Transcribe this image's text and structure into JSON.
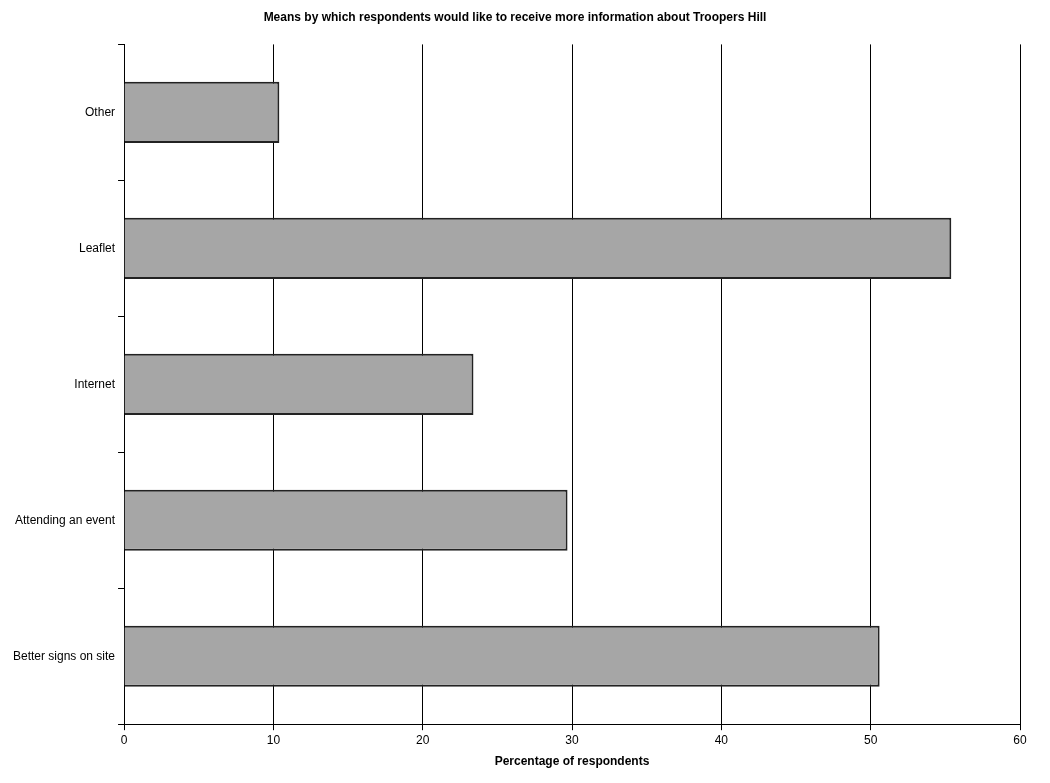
{
  "chart_data": {
    "type": "bar",
    "orientation": "horizontal",
    "title": "Means by which respondents would like to receive more information about Troopers Hill",
    "xlabel": "Percentage of respondents",
    "categories": [
      "Other",
      "Leaflet",
      "Internet",
      "Attending an event",
      "Better signs on site"
    ],
    "values": [
      10.4,
      55.4,
      23.4,
      29.7,
      50.6
    ],
    "color": "#a6a6a6",
    "xlim": [
      0,
      60
    ],
    "xticks": [
      0,
      10,
      20,
      30,
      40,
      50,
      60
    ],
    "grid": "x",
    "legend": false
  }
}
